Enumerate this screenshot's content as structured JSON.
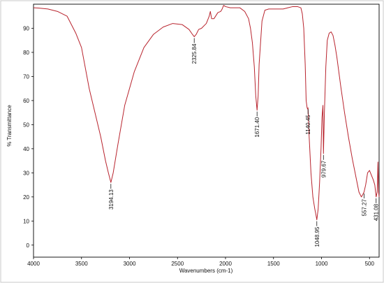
{
  "chart_data": {
    "type": "line",
    "xlabel": "Wavenumbers (cm-1)",
    "ylabel": "% Transmittance",
    "xlim": [
      4000,
      400
    ],
    "ylim": [
      -5,
      100
    ],
    "x_reversed": true,
    "grid": false,
    "x_ticks": [
      4000,
      3500,
      3000,
      2500,
      2000,
      1500,
      1000,
      500
    ],
    "y_ticks": [
      0,
      10,
      20,
      30,
      40,
      50,
      60,
      70,
      80,
      90
    ],
    "series": [
      {
        "color": "#b8232d",
        "x": [
          4000,
          3950,
          3850,
          3750,
          3650,
          3560,
          3500,
          3420,
          3360,
          3300,
          3250,
          3220,
          3194.13,
          3170,
          3120,
          3050,
          2950,
          2850,
          2750,
          2650,
          2550,
          2450,
          2380,
          2345,
          2325.84,
          2305,
          2280,
          2250,
          2200,
          2170,
          2158,
          2145,
          2120,
          2080,
          2050,
          2035,
          2020,
          2000,
          1950,
          1900,
          1850,
          1800,
          1760,
          1740,
          1720,
          1700,
          1685,
          1671.4,
          1660,
          1650,
          1620,
          1590,
          1550,
          1500,
          1450,
          1400,
          1350,
          1300,
          1250,
          1215,
          1200,
          1185,
          1170,
          1160,
          1150,
          1145,
          1140.45,
          1130,
          1110,
          1090,
          1070,
          1060,
          1048.95,
          1035,
          1020,
          1005,
          995,
          985,
          979.67,
          970,
          955,
          940,
          920,
          900,
          880,
          860,
          840,
          800,
          760,
          720,
          680,
          640,
          610,
          585,
          570,
          557.27,
          540,
          520,
          500,
          480,
          460,
          445,
          431.08,
          420,
          412,
          405,
          400
        ],
        "y": [
          98.5,
          98.4,
          98,
          97,
          95,
          88,
          82,
          65,
          55,
          45,
          35,
          30,
          26,
          30,
          42,
          58,
          72,
          82,
          87.5,
          90.5,
          92,
          91.5,
          89.5,
          87.5,
          86.5,
          87.5,
          89.5,
          90,
          92,
          95,
          97,
          94,
          94,
          96.5,
          97,
          98,
          99.5,
          99,
          98.5,
          98.5,
          98.5,
          97,
          94,
          90,
          84,
          74,
          62,
          56,
          62,
          75,
          93,
          97.5,
          98,
          98,
          98,
          98,
          98.5,
          99,
          99,
          98.5,
          96,
          90,
          75,
          60,
          57,
          56.5,
          57,
          46,
          30,
          20,
          15,
          13,
          10.5,
          15,
          26,
          40,
          53,
          58,
          38,
          55,
          74,
          85,
          88,
          88.5,
          87,
          83,
          78,
          66,
          55,
          45,
          36,
          28,
          22,
          20,
          21,
          22,
          25,
          30,
          31,
          29,
          27,
          25,
          20,
          22,
          34.5,
          22,
          20
        ]
      }
    ],
    "annotations": [
      {
        "x": 3194.13,
        "y": 26,
        "label": "3194.13"
      },
      {
        "x": 2325.84,
        "y": 86.5,
        "label": "2325.84"
      },
      {
        "x": 1671.4,
        "y": 56,
        "label": "1671.40"
      },
      {
        "x": 1140.45,
        "y": 57,
        "label": "1140.45"
      },
      {
        "x": 1048.95,
        "y": 10.5,
        "label": "1048.95"
      },
      {
        "x": 979.67,
        "y": 38,
        "label": "979.67"
      },
      {
        "x": 557.27,
        "y": 22,
        "label": "557.27"
      },
      {
        "x": 431.08,
        "y": 20,
        "label": "431.08"
      }
    ]
  }
}
